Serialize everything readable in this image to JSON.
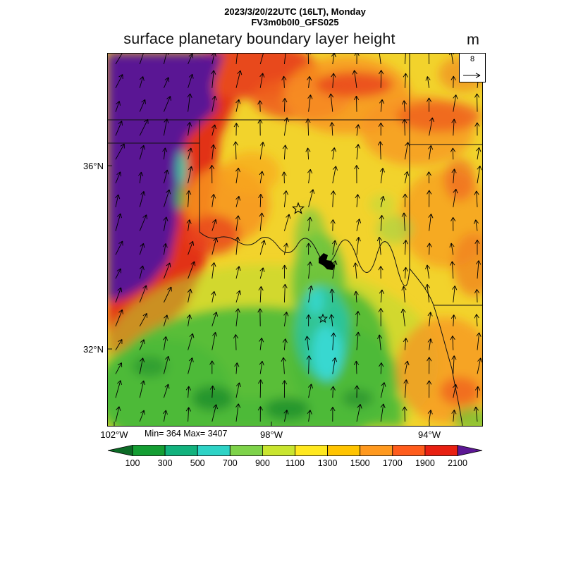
{
  "header": {
    "datetime_line": "2023/3/20/22UTC (16LT), Monday",
    "model_line": "FV3m0b0I0_GFS025"
  },
  "title": {
    "text": "surface planetary boundary layer height",
    "units": "m"
  },
  "axes": {
    "y_ticks": [
      {
        "label": "36°N"
      },
      {
        "label": "32°N"
      }
    ],
    "x_ticks": [
      {
        "label": "102°W"
      },
      {
        "label": "98°W"
      },
      {
        "label": "94°W"
      }
    ]
  },
  "stats_line": "Min= 364 Max= 3407",
  "reference_vector": {
    "value": "8"
  },
  "chart_data": {
    "type": "heatmap",
    "title": "surface planetary boundary layer height",
    "units": "m",
    "valid_time": "2023/3/20/22UTC (16LT), Monday",
    "model": "FV3m0b0I0_GFS025",
    "min": 364,
    "max": 3407,
    "colorbar_levels": [
      100,
      300,
      500,
      700,
      900,
      1100,
      1300,
      1500,
      1700,
      1900,
      2100
    ],
    "colorbar_colors": [
      "#0c6b26",
      "#149e33",
      "#12b27d",
      "#2ed3c6",
      "#7ed34a",
      "#c9e52f",
      "#ffe81f",
      "#ffc400",
      "#ff991f",
      "#ff5c1c",
      "#e82012",
      "#5c1794"
    ],
    "x_tick_labels": [
      "102°W",
      "98°W",
      "94°W"
    ],
    "y_tick_labels": [
      "36°N",
      "32°N"
    ],
    "reference_vector_value": 8,
    "overlays": [
      "wind vector arrows pointing generally north",
      "state borders (Texas / Oklahoma region, Red River)",
      "two star location markers"
    ],
    "field_summary": {
      "high_region": "purple/red maximum band in the northwest (values above 2100 m, up to 3407 m)",
      "mid_region": "broad yellow/orange field 900-1700 m over Oklahoma and the east",
      "low_region": "green/teal/cyan minimum 364-900 m across south-central area"
    }
  }
}
